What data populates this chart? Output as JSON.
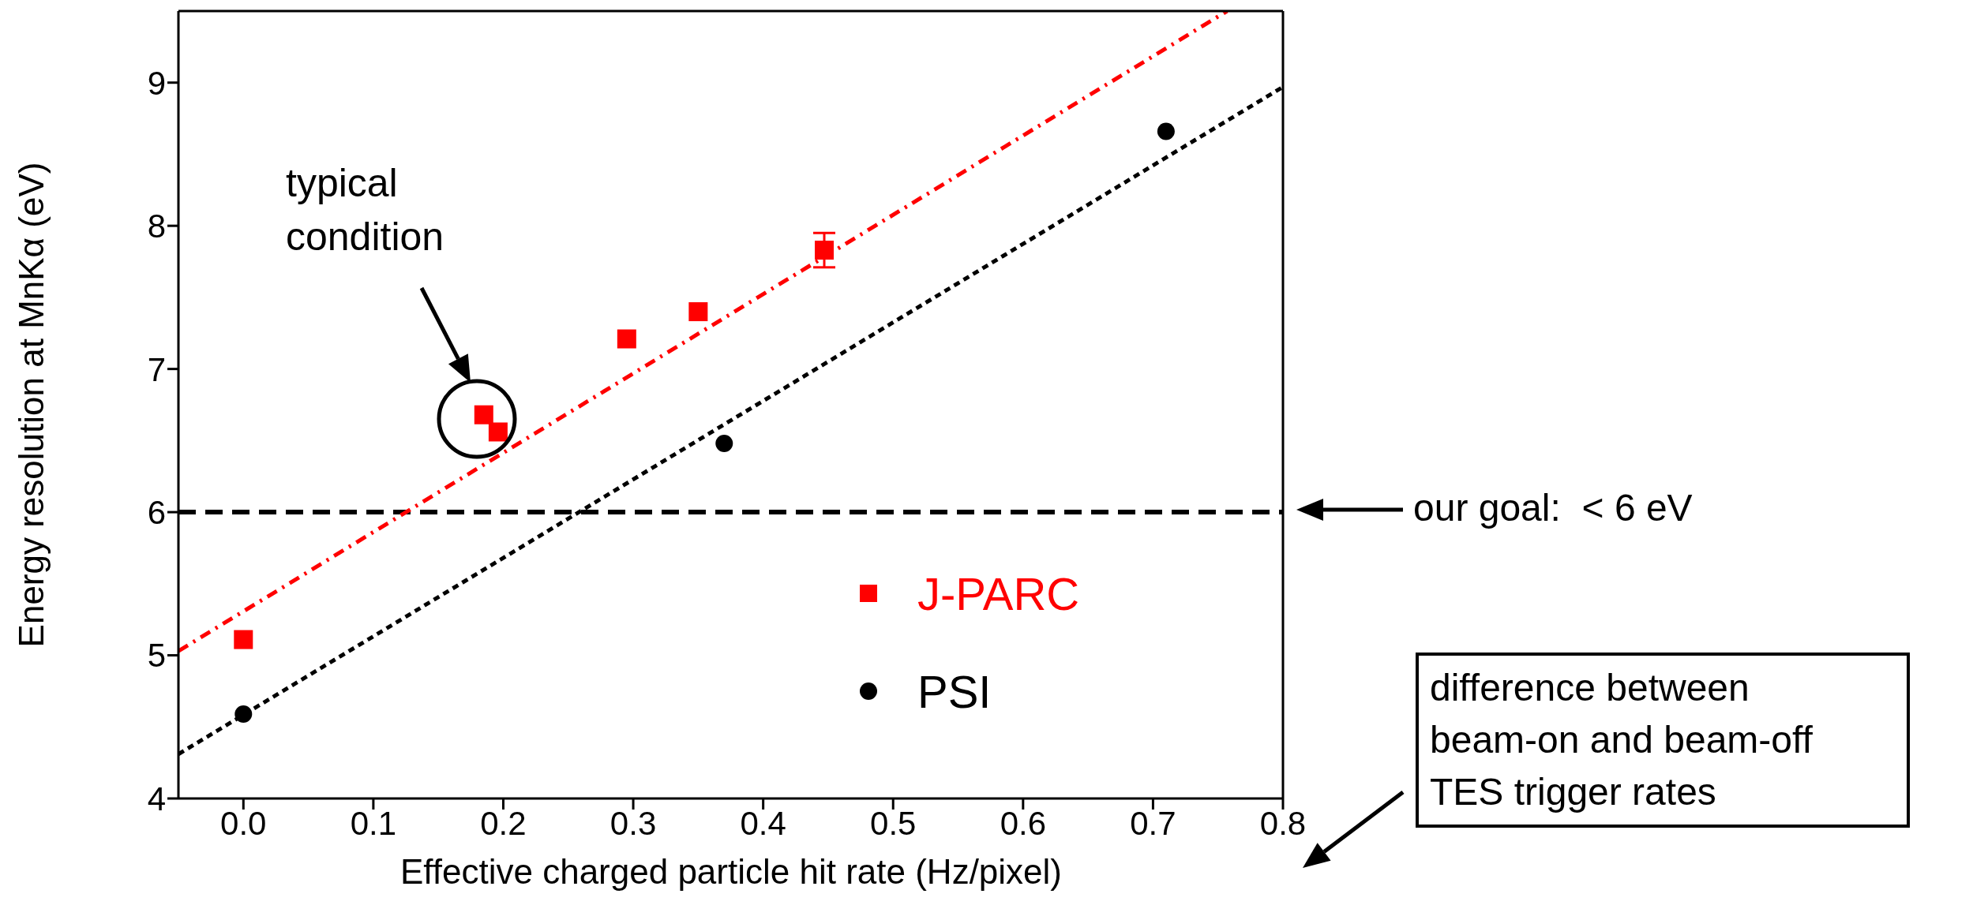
{
  "chart_data": {
    "type": "scatter",
    "xlabel": "Effective charged particle hit rate (Hz/pixel)",
    "ylabel": "Energy resolution at MnKα (eV)",
    "xlim": [
      -0.05,
      0.8
    ],
    "xticks": [
      {
        "value": 0,
        "label": "0.0"
      },
      0.1,
      0.2,
      0.3,
      0.4,
      0.5,
      0.6,
      0.7,
      0.8
    ],
    "ylim": [
      4,
      9.5
    ],
    "yticks": [
      4,
      5,
      6,
      7,
      8,
      9
    ],
    "legend": "bottom",
    "series": [
      {
        "name": "J-PARC",
        "color": "#ff0000",
        "marker": "square",
        "x": [
          0,
          0.185,
          0.196,
          0.295,
          0.35,
          0.447
        ],
        "values": [
          5.11,
          6.68,
          6.56,
          7.21,
          7.4,
          7.83
        ],
        "errors": [
          null,
          null,
          null,
          null,
          null,
          0.12
        ]
      },
      {
        "name": "PSI",
        "color": "#000000",
        "marker": "circle",
        "x": [
          0,
          0.37,
          0.71
        ],
        "values": [
          4.59,
          6.48,
          8.66
        ]
      },
      {
        "type": "line",
        "color": "#ff0000",
        "marker": "none",
        "line_style": "dashed",
        "x": [
          -0.05,
          0.757
        ],
        "values": [
          5.03,
          9.5
        ]
      },
      {
        "type": "line",
        "color": "#000000",
        "marker": "none",
        "line_style": "dotted",
        "x": [
          -0.05,
          0.8
        ],
        "values": [
          4.31,
          8.97
        ]
      }
    ],
    "ref_lines": [
      {
        "axis": "y",
        "value": 6,
        "color": "#000000",
        "line_style": "dashed"
      }
    ],
    "annotations": [
      "typical condition",
      "our goal:  < 6 eV",
      "difference between beam-on and beam-off TES trigger rates"
    ]
  }
}
